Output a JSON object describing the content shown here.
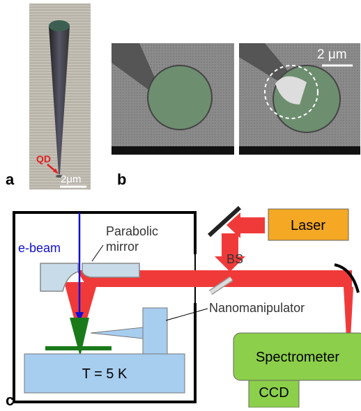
{
  "panels": {
    "a": {
      "label": "a",
      "qd": "QD",
      "scale_bar": "2μm"
    },
    "b": {
      "label": "b",
      "scale_bar": "2 μm"
    },
    "c": {
      "label": "c",
      "e_beam": "e-beam",
      "mirror": [
        "Parabolic",
        "mirror"
      ],
      "laser": "Laser",
      "bs": "BS",
      "manipulator": "Nanomanipulator",
      "temperature": "T = 5 K",
      "spectrometer": "Spectrometer",
      "ccd": "CCD"
    }
  }
}
